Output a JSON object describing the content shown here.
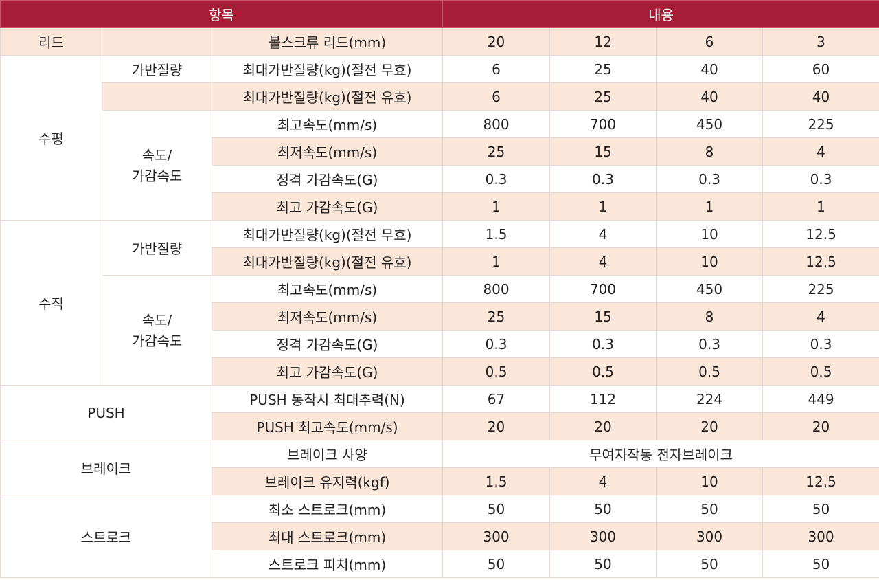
{
  "header": {
    "item": "항목",
    "content": "내용"
  },
  "lead": {
    "category": "리드",
    "label": "볼스크류 리드(mm)",
    "values": [
      "20",
      "12",
      "6",
      "3"
    ]
  },
  "horizontal": {
    "category": "수평",
    "payload_group": "가반질량",
    "speed_group_line1": "속도/",
    "speed_group_line2": "가감속도",
    "rows": [
      {
        "label": "최대가반질량(kg)(절전 무효)",
        "values": [
          "6",
          "25",
          "40",
          "60"
        ]
      },
      {
        "label": "최대가반질량(kg)(절전 유효)",
        "values": [
          "6",
          "25",
          "40",
          "40"
        ]
      },
      {
        "label": "최고속도(mm/s)",
        "values": [
          "800",
          "700",
          "450",
          "225"
        ]
      },
      {
        "label": "최저속도(mm/s)",
        "values": [
          "25",
          "15",
          "8",
          "4"
        ]
      },
      {
        "label": "정격 가감속도(G)",
        "values": [
          "0.3",
          "0.3",
          "0.3",
          "0.3"
        ]
      },
      {
        "label": "최고 가감속도(G)",
        "values": [
          "1",
          "1",
          "1",
          "1"
        ]
      }
    ]
  },
  "vertical": {
    "category": "수직",
    "payload_group": "가반질량",
    "speed_group_line1": "속도/",
    "speed_group_line2": "가감속도",
    "rows": [
      {
        "label": "최대가반질량(kg)(절전 무효)",
        "values": [
          "1.5",
          "4",
          "10",
          "12.5"
        ]
      },
      {
        "label": "최대가반질량(kg)(절전 유효)",
        "values": [
          "1",
          "4",
          "10",
          "12.5"
        ]
      },
      {
        "label": "최고속도(mm/s)",
        "values": [
          "800",
          "700",
          "450",
          "225"
        ]
      },
      {
        "label": "최저속도(mm/s)",
        "values": [
          "25",
          "15",
          "8",
          "4"
        ]
      },
      {
        "label": "정격 가감속도(G)",
        "values": [
          "0.3",
          "0.3",
          "0.3",
          "0.3"
        ]
      },
      {
        "label": "최고 가감속도(G)",
        "values": [
          "0.5",
          "0.5",
          "0.5",
          "0.5"
        ]
      }
    ]
  },
  "push": {
    "category": "PUSH",
    "rows": [
      {
        "label": "PUSH 동작시 최대추력(N)",
        "values": [
          "67",
          "112",
          "224",
          "449"
        ]
      },
      {
        "label": "PUSH 최고속도(mm/s)",
        "values": [
          "20",
          "20",
          "20",
          "20"
        ]
      }
    ]
  },
  "brake": {
    "category": "브레이크",
    "spec_label": "브레이크 사양",
    "spec_value": "무여자작동 전자브레이크",
    "hold_label": "브레이크 유지력(kgf)",
    "hold_values": [
      "1.5",
      "4",
      "10",
      "12.5"
    ]
  },
  "stroke": {
    "category": "스트로크",
    "rows": [
      {
        "label": "최소 스트로크(mm)",
        "values": [
          "50",
          "50",
          "50",
          "50"
        ]
      },
      {
        "label": "최대 스트로크(mm)",
        "values": [
          "300",
          "300",
          "300",
          "300"
        ]
      },
      {
        "label": "스트로크 피치(mm)",
        "values": [
          "50",
          "50",
          "50",
          "50"
        ]
      }
    ]
  }
}
